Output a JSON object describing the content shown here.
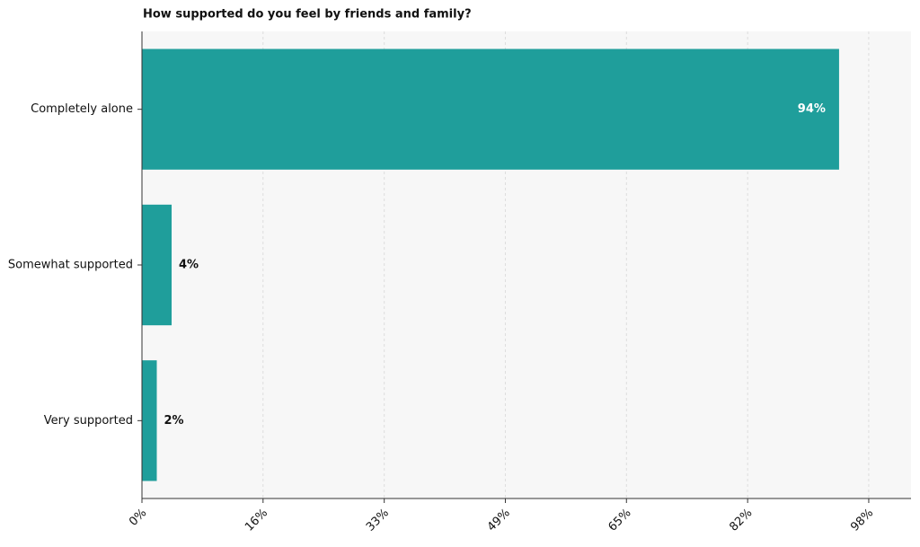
{
  "chart_data": {
    "type": "hbar",
    "title": "How supported do you feel by friends and family?",
    "categories": [
      "Completely alone",
      "Somewhat supported",
      "Very supported"
    ],
    "values": [
      94,
      4,
      2
    ],
    "value_labels": [
      "94%",
      "4%",
      "2%"
    ],
    "color": "#1f9e9b",
    "xlim": [
      0,
      103.7
    ],
    "xticks": [
      {
        "value": 0,
        "label": "0%"
      },
      {
        "value": 16.33,
        "label": "16%"
      },
      {
        "value": 32.67,
        "label": "33%"
      },
      {
        "value": 49,
        "label": "49%"
      },
      {
        "value": 65.33,
        "label": "65%"
      },
      {
        "value": 81.67,
        "label": "82%"
      },
      {
        "value": 98,
        "label": "98%"
      }
    ],
    "grid": true
  }
}
